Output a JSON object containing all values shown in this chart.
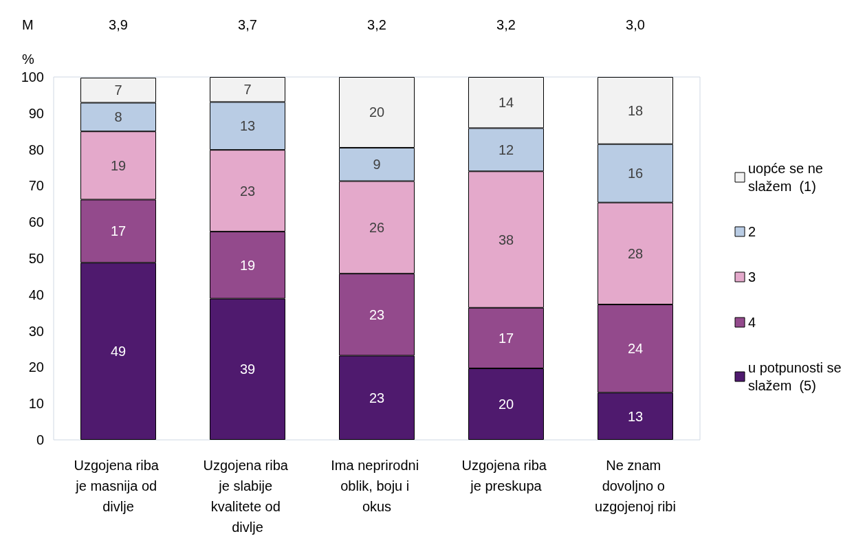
{
  "chart_data": {
    "type": "bar",
    "stacked": true,
    "ylabel": "%",
    "categories": [
      "Uzgojena riba je masnija od divlje",
      "Uzgojena riba je slabije kvalitete od divlje",
      "Ima neprirodni oblik, boju i okus",
      "Uzgojena riba je preskupa",
      "Ne znam dovoljno o uzgojenoj ribi"
    ],
    "series": [
      {
        "name": "u potpunosti se slažem  (5)",
        "color": "#4f1a6e",
        "values": [
          48.8,
          38.9,
          23.2,
          19.7,
          13.0
        ],
        "value_labels": [
          "49",
          "39",
          "23",
          "20",
          "13"
        ]
      },
      {
        "name": "4",
        "color": "#934a8c",
        "values": [
          17.4,
          18.5,
          22.6,
          16.7,
          24.3
        ],
        "value_labels": [
          "17",
          "19",
          "23",
          "17",
          "24"
        ]
      },
      {
        "name": "3",
        "color": "#e4a9cb",
        "values": [
          18.8,
          22.5,
          25.5,
          37.6,
          28.1
        ],
        "value_labels": [
          "19",
          "23",
          "26",
          "38",
          "28"
        ]
      },
      {
        "name": "2",
        "color": "#b9cce4",
        "values": [
          7.9,
          13.2,
          9.2,
          11.9,
          16.1
        ],
        "value_labels": [
          "8",
          "13",
          "9",
          "12",
          "16"
        ]
      },
      {
        "name": "uopće se ne slažem  (1)",
        "color": "#f2f2f2",
        "values": [
          6.9,
          6.9,
          19.5,
          14.1,
          18.5
        ],
        "value_labels": [
          "7",
          "7",
          "20",
          "14",
          "18"
        ]
      }
    ],
    "ylim": [
      0,
      100
    ],
    "yticks": [
      0,
      10,
      20,
      30,
      40,
      50,
      60,
      70,
      80,
      90,
      100
    ],
    "grid": false,
    "legend": "right",
    "annotations": [
      "M",
      "3,9",
      "3,7",
      "3,2",
      "3,2",
      "3,0"
    ]
  }
}
